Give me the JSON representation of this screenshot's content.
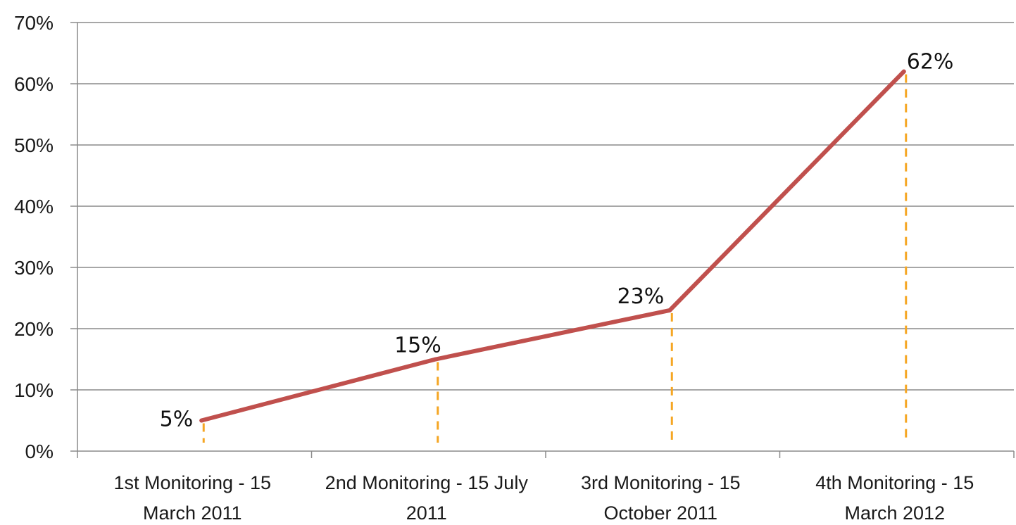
{
  "chart_data": {
    "type": "line",
    "categories": [
      "1st Monitoring - 15 March 2011",
      "2nd Monitoring - 15 July 2011",
      "3rd Monitoring - 15 October 2011",
      "4th Monitoring - 15 March 2012"
    ],
    "category_lines": [
      [
        "1st Monitoring - 15",
        "March 2011"
      ],
      [
        "2nd Monitoring - 15 July",
        "2011"
      ],
      [
        "3rd Monitoring - 15",
        "October 2011"
      ],
      [
        "4th Monitoring - 15",
        "March 2012"
      ]
    ],
    "values": [
      5,
      15,
      23,
      62
    ],
    "data_labels": [
      "5%",
      "15%",
      "23%",
      "62%"
    ],
    "yticks": [
      "0%",
      "10%",
      "20%",
      "30%",
      "40%",
      "50%",
      "60%",
      "70%"
    ],
    "ylim": [
      0,
      70
    ],
    "title": "",
    "xlabel": "",
    "ylabel": "",
    "grid": true,
    "legend": "none",
    "drop_lines": true,
    "colors": {
      "line": "#c0504d",
      "drop_lines": "#f5a623",
      "grid": "#8a8a8a"
    }
  }
}
